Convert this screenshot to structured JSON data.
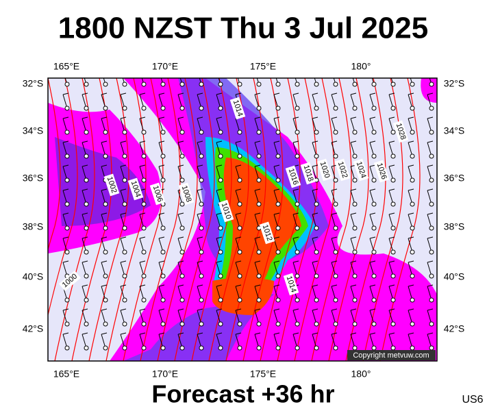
{
  "header": {
    "title": "1800 NZST Thu 3 Jul 2025"
  },
  "map": {
    "lon_labels": [
      "165°E",
      "170°E",
      "175°E",
      "180°"
    ],
    "lat_labels": [
      "32°S",
      "34°S",
      "36°S",
      "38°S",
      "40°S",
      "42°S"
    ],
    "isobar_labels": [
      "1014",
      "1002",
      "1004",
      "1006",
      "1008",
      "1010",
      "1012",
      "1014",
      "1016",
      "1018",
      "1020",
      "1022",
      "1024",
      "1026",
      "1028",
      "1000"
    ],
    "copyright": "Copyright metvuw.com"
  },
  "footer": {
    "forecast": "Forecast +36 hr",
    "code": "US6"
  }
}
